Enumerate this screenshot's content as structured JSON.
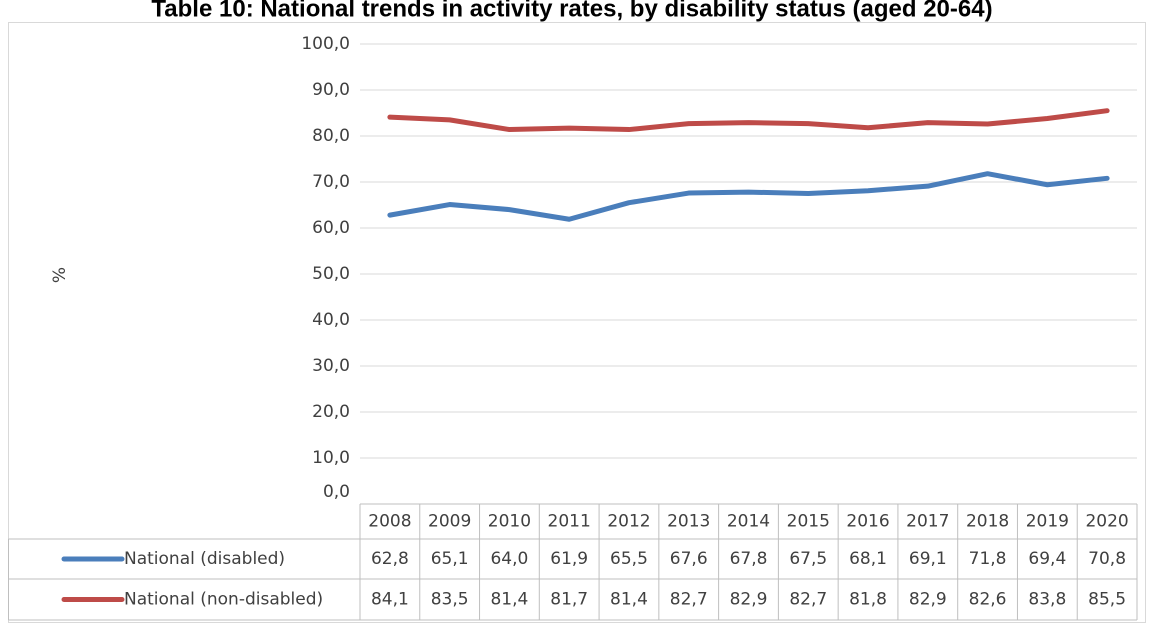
{
  "chart_data": {
    "type": "line",
    "title": "Table 10: National trends in activity rates, by disability status (aged 20-64)",
    "y_label": "%",
    "categories": [
      "2008",
      "2009",
      "2010",
      "2011",
      "2012",
      "2013",
      "2014",
      "2015",
      "2016",
      "2017",
      "2018",
      "2019",
      "2020"
    ],
    "series": [
      {
        "name": "National (disabled)",
        "color": "#4a7ebb",
        "values": [
          62.8,
          65.1,
          64.0,
          61.9,
          65.5,
          67.6,
          67.8,
          67.5,
          68.1,
          69.1,
          71.8,
          69.4,
          70.8
        ],
        "value_labels": [
          "62,8",
          "65,1",
          "64,0",
          "61,9",
          "65,5",
          "67,6",
          "67,8",
          "67,5",
          "68,1",
          "69,1",
          "71,8",
          "69,4",
          "70,8"
        ]
      },
      {
        "name": "National (non-disabled)",
        "color": "#be4b48",
        "values": [
          84.1,
          83.5,
          81.4,
          81.7,
          81.4,
          82.7,
          82.9,
          82.7,
          81.8,
          82.9,
          82.6,
          83.8,
          85.5
        ],
        "value_labels": [
          "84,1",
          "83,5",
          "81,4",
          "81,7",
          "81,4",
          "82,7",
          "82,9",
          "82,7",
          "81,8",
          "82,9",
          "82,6",
          "83,8",
          "85,5"
        ]
      }
    ],
    "ylim": [
      0,
      100
    ],
    "yticks": [
      {
        "value": 0,
        "label": "0,0"
      },
      {
        "value": 10,
        "label": "10,0"
      },
      {
        "value": 20,
        "label": "20,0"
      },
      {
        "value": 30,
        "label": "30,0"
      },
      {
        "value": 40,
        "label": "40,0"
      },
      {
        "value": 50,
        "label": "50,0"
      },
      {
        "value": 60,
        "label": "60,0"
      },
      {
        "value": 70,
        "label": "70,0"
      },
      {
        "value": 80,
        "label": "80,0"
      },
      {
        "value": 90,
        "label": "90,0"
      },
      {
        "value": 100,
        "label": "100,0"
      }
    ],
    "grid": true
  }
}
